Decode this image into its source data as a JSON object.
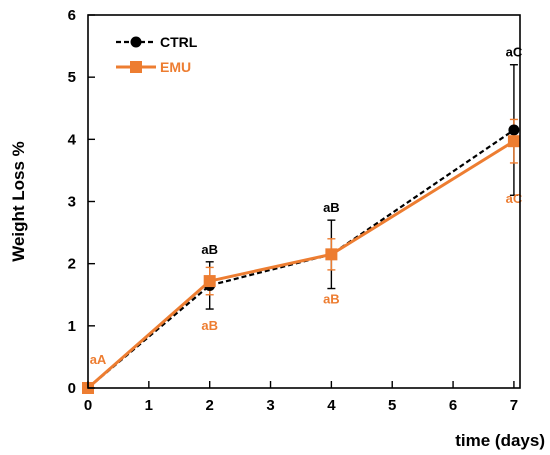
{
  "chart_data": {
    "type": "line",
    "xlabel": "time (days)",
    "ylabel": "Weight Loss %",
    "xlim": [
      0,
      7.1
    ],
    "ylim": [
      0,
      6
    ],
    "xticks": [
      0,
      1,
      2,
      3,
      4,
      5,
      6,
      7
    ],
    "yticks": [
      0,
      1,
      2,
      3,
      4,
      5,
      6
    ],
    "grid": false,
    "legend_position": "top-left",
    "series": [
      {
        "name": "CTRL",
        "color": "#000000",
        "line_style": "dashed",
        "marker": "circle",
        "x": [
          0,
          2,
          4,
          7
        ],
        "y": [
          0,
          1.65,
          2.15,
          4.15
        ],
        "error": [
          0,
          0.38,
          0.55,
          1.05
        ],
        "annotations": [
          "",
          "aB",
          "aB",
          "aC"
        ]
      },
      {
        "name": "EMU",
        "color": "#ED7D31",
        "line_style": "solid",
        "marker": "square",
        "x": [
          0,
          2,
          4,
          7
        ],
        "y": [
          0,
          1.72,
          2.15,
          3.97
        ],
        "error": [
          0,
          0.22,
          0.25,
          0.35
        ],
        "annotations": [
          "aA",
          "aB",
          "aB",
          "aC"
        ]
      }
    ]
  }
}
